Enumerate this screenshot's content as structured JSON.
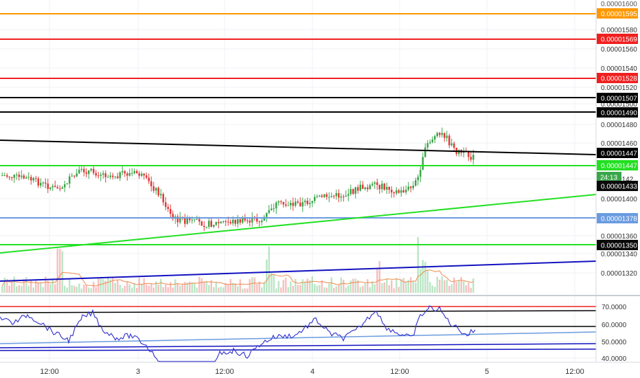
{
  "price_axis": {
    "ticks": [
      "0.00001580",
      "0.00001560",
      "0.00001540",
      "0.00001520",
      "0.00001500",
      "0.00001480",
      "0.00001460",
      "0.00001400",
      "0.00001360",
      "0.00001340",
      "0.00001320"
    ],
    "partial_ticks": [
      "0.00001600",
      "0.0000142"
    ]
  },
  "price_labels": [
    {
      "text": "0.00001595",
      "bg": "#ff9800",
      "fg": "#ffffff"
    },
    {
      "text": "0.00001569",
      "bg": "#f01f1f",
      "fg": "#ffffff"
    },
    {
      "text": "0.00001528",
      "bg": "#f01f1f",
      "fg": "#ffffff"
    },
    {
      "text": "0.00001507",
      "bg": "#000000",
      "fg": "#ffffff"
    },
    {
      "text": "0.00001490",
      "bg": "#000000",
      "fg": "#ffffff"
    },
    {
      "text": "0.00001447",
      "bg": "#000000",
      "fg": "#ffffff"
    },
    {
      "text": "0.00001447",
      "bg": "#22e022",
      "fg": "#ffffff"
    },
    {
      "text": "24:13",
      "bg": "#3aa64a",
      "fg": "#ffffff"
    },
    {
      "text": "0.00001433",
      "bg": "#0a0a0a",
      "fg": "#ffffff"
    },
    {
      "text": "0.00001378",
      "bg": "#6a9be0",
      "fg": "#ffffff"
    },
    {
      "text": "0.00001350",
      "bg": "#0a0a0a",
      "fg": "#ffffff"
    }
  ],
  "rsi_axis": {
    "ticks": [
      "70.0000",
      "60.0000",
      "50.0000",
      "40.0000"
    ]
  },
  "time_axis": {
    "ticks": [
      "12:00",
      "3",
      "12:00",
      "4",
      "12:00",
      "5",
      "12:00"
    ]
  },
  "colors": {
    "up": "#3aa64a",
    "down": "#e03a3a",
    "orange": "#ff9800",
    "red": "#f01f1f",
    "black": "#000000",
    "green": "#22e022",
    "lightblue": "#6a9be0",
    "navy": "#1010c0",
    "rsi": "#3a3ad0",
    "grid": "#eef1f4"
  }
}
